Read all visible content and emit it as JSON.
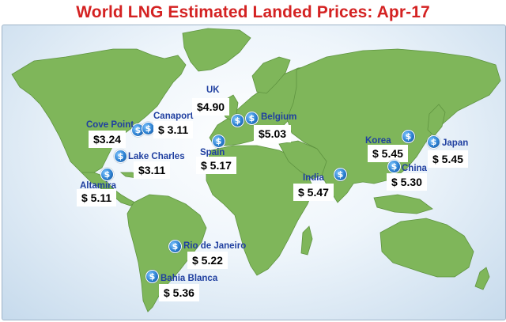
{
  "title": "World LNG Estimated Landed Prices: Apr-17",
  "map": {
    "icon": "dollar-pin-icon",
    "marker_glyph": "$",
    "colors": {
      "land": "#7fb65a",
      "ocean": "#d6e6f3",
      "title": "#d42222",
      "location": "#1f3fa0"
    },
    "locations": {
      "cove_point": {
        "name": "Cove Point",
        "price": "$3.24"
      },
      "canaport": {
        "name": "Canaport",
        "price": "$ 3.11"
      },
      "lake_charles": {
        "name": "Lake Charles",
        "price": "$3.11"
      },
      "altamira": {
        "name": "Altamira",
        "price": "$ 5.11"
      },
      "uk": {
        "name": "UK",
        "price": "$4.90"
      },
      "belgium": {
        "name": "Belgium",
        "price": "$5.03"
      },
      "spain": {
        "name": "Spain",
        "price": "$ 5.17"
      },
      "india": {
        "name": "India",
        "price": "$ 5.47"
      },
      "korea": {
        "name": "Korea",
        "price": "$ 5.45"
      },
      "japan": {
        "name": "Japan",
        "price": "$ 5.45"
      },
      "china": {
        "name": "China",
        "price": "$ 5.30"
      },
      "rio_de_janeiro": {
        "name": "Rio de Janeiro",
        "price": "$ 5.22"
      },
      "bahia_blanca": {
        "name": "Bahia Blanca",
        "price": "$ 5.36"
      }
    }
  }
}
